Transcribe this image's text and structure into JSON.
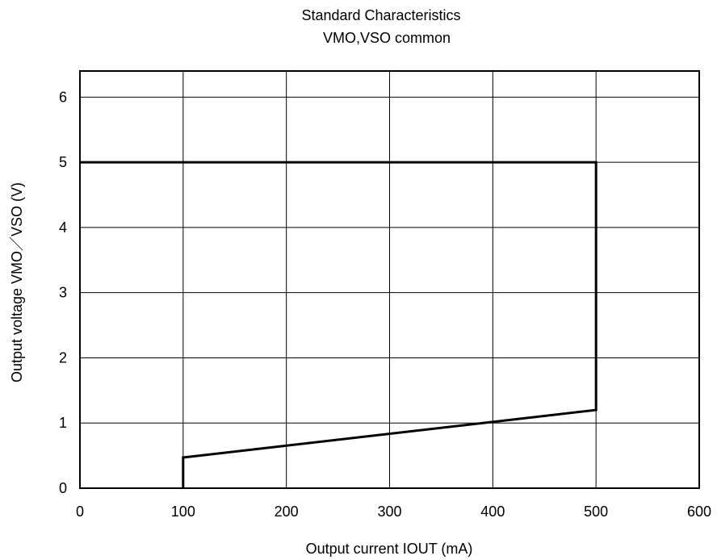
{
  "chart_data": {
    "type": "line",
    "title": "Standard Characteristics",
    "subtitle": "VMO,VSO common",
    "xlabel": "Output current IOUT (mA)",
    "ylabel": "Output voltage VMO／VSO (V)",
    "xlim": [
      0,
      600
    ],
    "ylim": [
      0,
      6.4
    ],
    "xticks": [
      "0",
      "100",
      "200",
      "300",
      "400",
      "500",
      "600"
    ],
    "yticks": [
      "0",
      "1",
      "2",
      "3",
      "4",
      "5",
      "6"
    ],
    "grid": true,
    "series": [
      {
        "x": [
          0,
          500,
          500,
          100,
          100
        ],
        "y": [
          5,
          5,
          1.2,
          0.47,
          0
        ]
      }
    ]
  }
}
